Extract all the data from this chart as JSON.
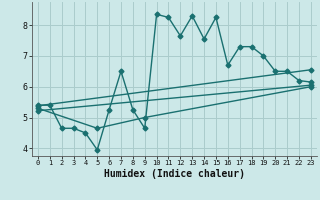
{
  "xlabel": "Humidex (Indice chaleur)",
  "bg_color": "#cce8e8",
  "grid_color": "#aacccc",
  "line_color": "#1a7070",
  "xlim": [
    -0.5,
    23.5
  ],
  "ylim": [
    3.75,
    8.75
  ],
  "xticks": [
    0,
    1,
    2,
    3,
    4,
    5,
    6,
    7,
    8,
    9,
    10,
    11,
    12,
    13,
    14,
    15,
    16,
    17,
    18,
    19,
    20,
    21,
    22,
    23
  ],
  "yticks": [
    4,
    5,
    6,
    7,
    8
  ],
  "series1_x": [
    0,
    1,
    2,
    3,
    4,
    5,
    6,
    7,
    8,
    9,
    10,
    11,
    12,
    13,
    14,
    15,
    16,
    17,
    18,
    19,
    20,
    21,
    22,
    23
  ],
  "series1_y": [
    5.4,
    5.4,
    4.65,
    4.65,
    4.5,
    3.95,
    5.25,
    6.5,
    5.25,
    4.65,
    8.35,
    8.25,
    7.65,
    8.3,
    7.55,
    8.25,
    6.7,
    7.3,
    7.3,
    7.0,
    6.5,
    6.5,
    6.2,
    6.15
  ],
  "series2_x": [
    0,
    23
  ],
  "series2_y": [
    5.38,
    6.55
  ],
  "series3_x": [
    0,
    23
  ],
  "series3_y": [
    5.22,
    6.05
  ],
  "series4_x": [
    0,
    5,
    9,
    23
  ],
  "series4_y": [
    5.3,
    4.65,
    5.0,
    6.0
  ],
  "marker": "D",
  "markersize": 2.5,
  "linewidth": 1.0
}
